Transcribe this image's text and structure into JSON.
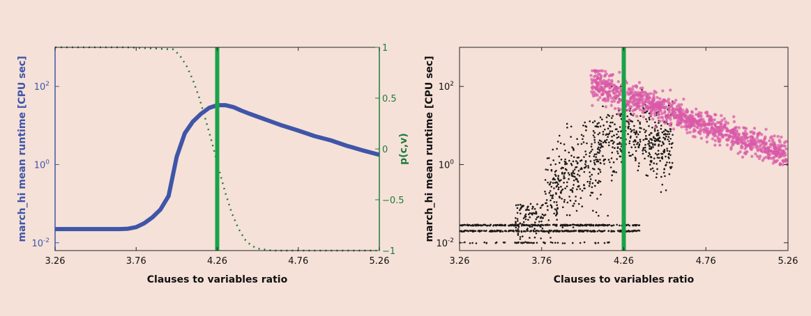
{
  "chart_data": [
    {
      "type": "line",
      "xlabel": "Clauses to variables ratio",
      "ylabel": "march_hi mean runtime [CPU sec]",
      "ylabel_right": "p(c,v)",
      "xlim": [
        3.26,
        5.26
      ],
      "xticks": [
        "3.26",
        "3.76",
        "4.26",
        "4.76",
        "5.26"
      ],
      "ylim_log10": [
        -2.2,
        3.0
      ],
      "yscale": "log",
      "yticks": [
        {
          "base": "10",
          "exp": "2",
          "v": 2
        },
        {
          "base": "10",
          "exp": "0",
          "v": 0
        },
        {
          "base": "10",
          "exp": "-2",
          "v": -2
        }
      ],
      "ylim_right": [
        -1,
        1
      ],
      "yticks_right": [
        "1",
        "0.5",
        "0",
        "-0.5",
        "-1"
      ],
      "vline_x": 4.26,
      "series": [
        {
          "color": "#3f55a8",
          "x": [
            3.26,
            3.36,
            3.46,
            3.56,
            3.66,
            3.71,
            3.76,
            3.81,
            3.86,
            3.91,
            3.96,
            4.01,
            4.06,
            4.11,
            4.16,
            4.21,
            4.26,
            4.31,
            4.36,
            4.41,
            4.46,
            4.56,
            4.66,
            4.76,
            4.86,
            4.96,
            5.06,
            5.16,
            5.26
          ],
          "log10_y": [
            -1.65,
            -1.65,
            -1.65,
            -1.65,
            -1.65,
            -1.64,
            -1.6,
            -1.5,
            -1.35,
            -1.15,
            -0.8,
            0.2,
            0.8,
            1.1,
            1.3,
            1.45,
            1.52,
            1.52,
            1.47,
            1.38,
            1.3,
            1.15,
            1.0,
            0.87,
            0.73,
            0.62,
            0.48,
            0.36,
            0.25
          ]
        },
        {
          "color": "#1e7a3a",
          "x": [
            3.26,
            3.5,
            3.6,
            3.7,
            3.99,
            4.03,
            4.07,
            4.11,
            4.15,
            4.19,
            4.23,
            4.27,
            4.31,
            4.35,
            4.39,
            4.43,
            4.47,
            4.51,
            4.6,
            4.8,
            5.26
          ],
          "y": [
            1,
            1,
            1,
            1,
            0.98,
            0.92,
            0.82,
            0.68,
            0.5,
            0.28,
            0.05,
            -0.2,
            -0.43,
            -0.63,
            -0.78,
            -0.89,
            -0.95,
            -0.98,
            -1,
            -1,
            -1
          ]
        }
      ]
    },
    {
      "type": "scatter",
      "xlabel": "Clauses to variables ratio",
      "ylabel": "march_hi mean runtime [CPU sec]",
      "xlim": [
        3.26,
        5.26
      ],
      "xticks": [
        "3.26",
        "3.76",
        "4.26",
        "4.76",
        "5.26"
      ],
      "ylim_log10": [
        -2.2,
        3.0
      ],
      "yscale": "log",
      "yticks": [
        {
          "base": "10",
          "exp": "2",
          "v": 2
        },
        {
          "base": "10",
          "exp": "0",
          "v": 0
        },
        {
          "base": "10",
          "exp": "-2",
          "v": -2
        }
      ],
      "vline_x": 4.26,
      "series": [
        {
          "color": "#1a1a1a",
          "marker": "dot",
          "x_range": [
            3.26,
            4.56
          ],
          "log10_y_range": [
            -2.0,
            2.0
          ]
        },
        {
          "color": "#d95aa8",
          "marker": "circle",
          "x_range": [
            4.06,
            5.26
          ],
          "log10_y_range": [
            0.0,
            2.4
          ]
        }
      ]
    }
  ]
}
